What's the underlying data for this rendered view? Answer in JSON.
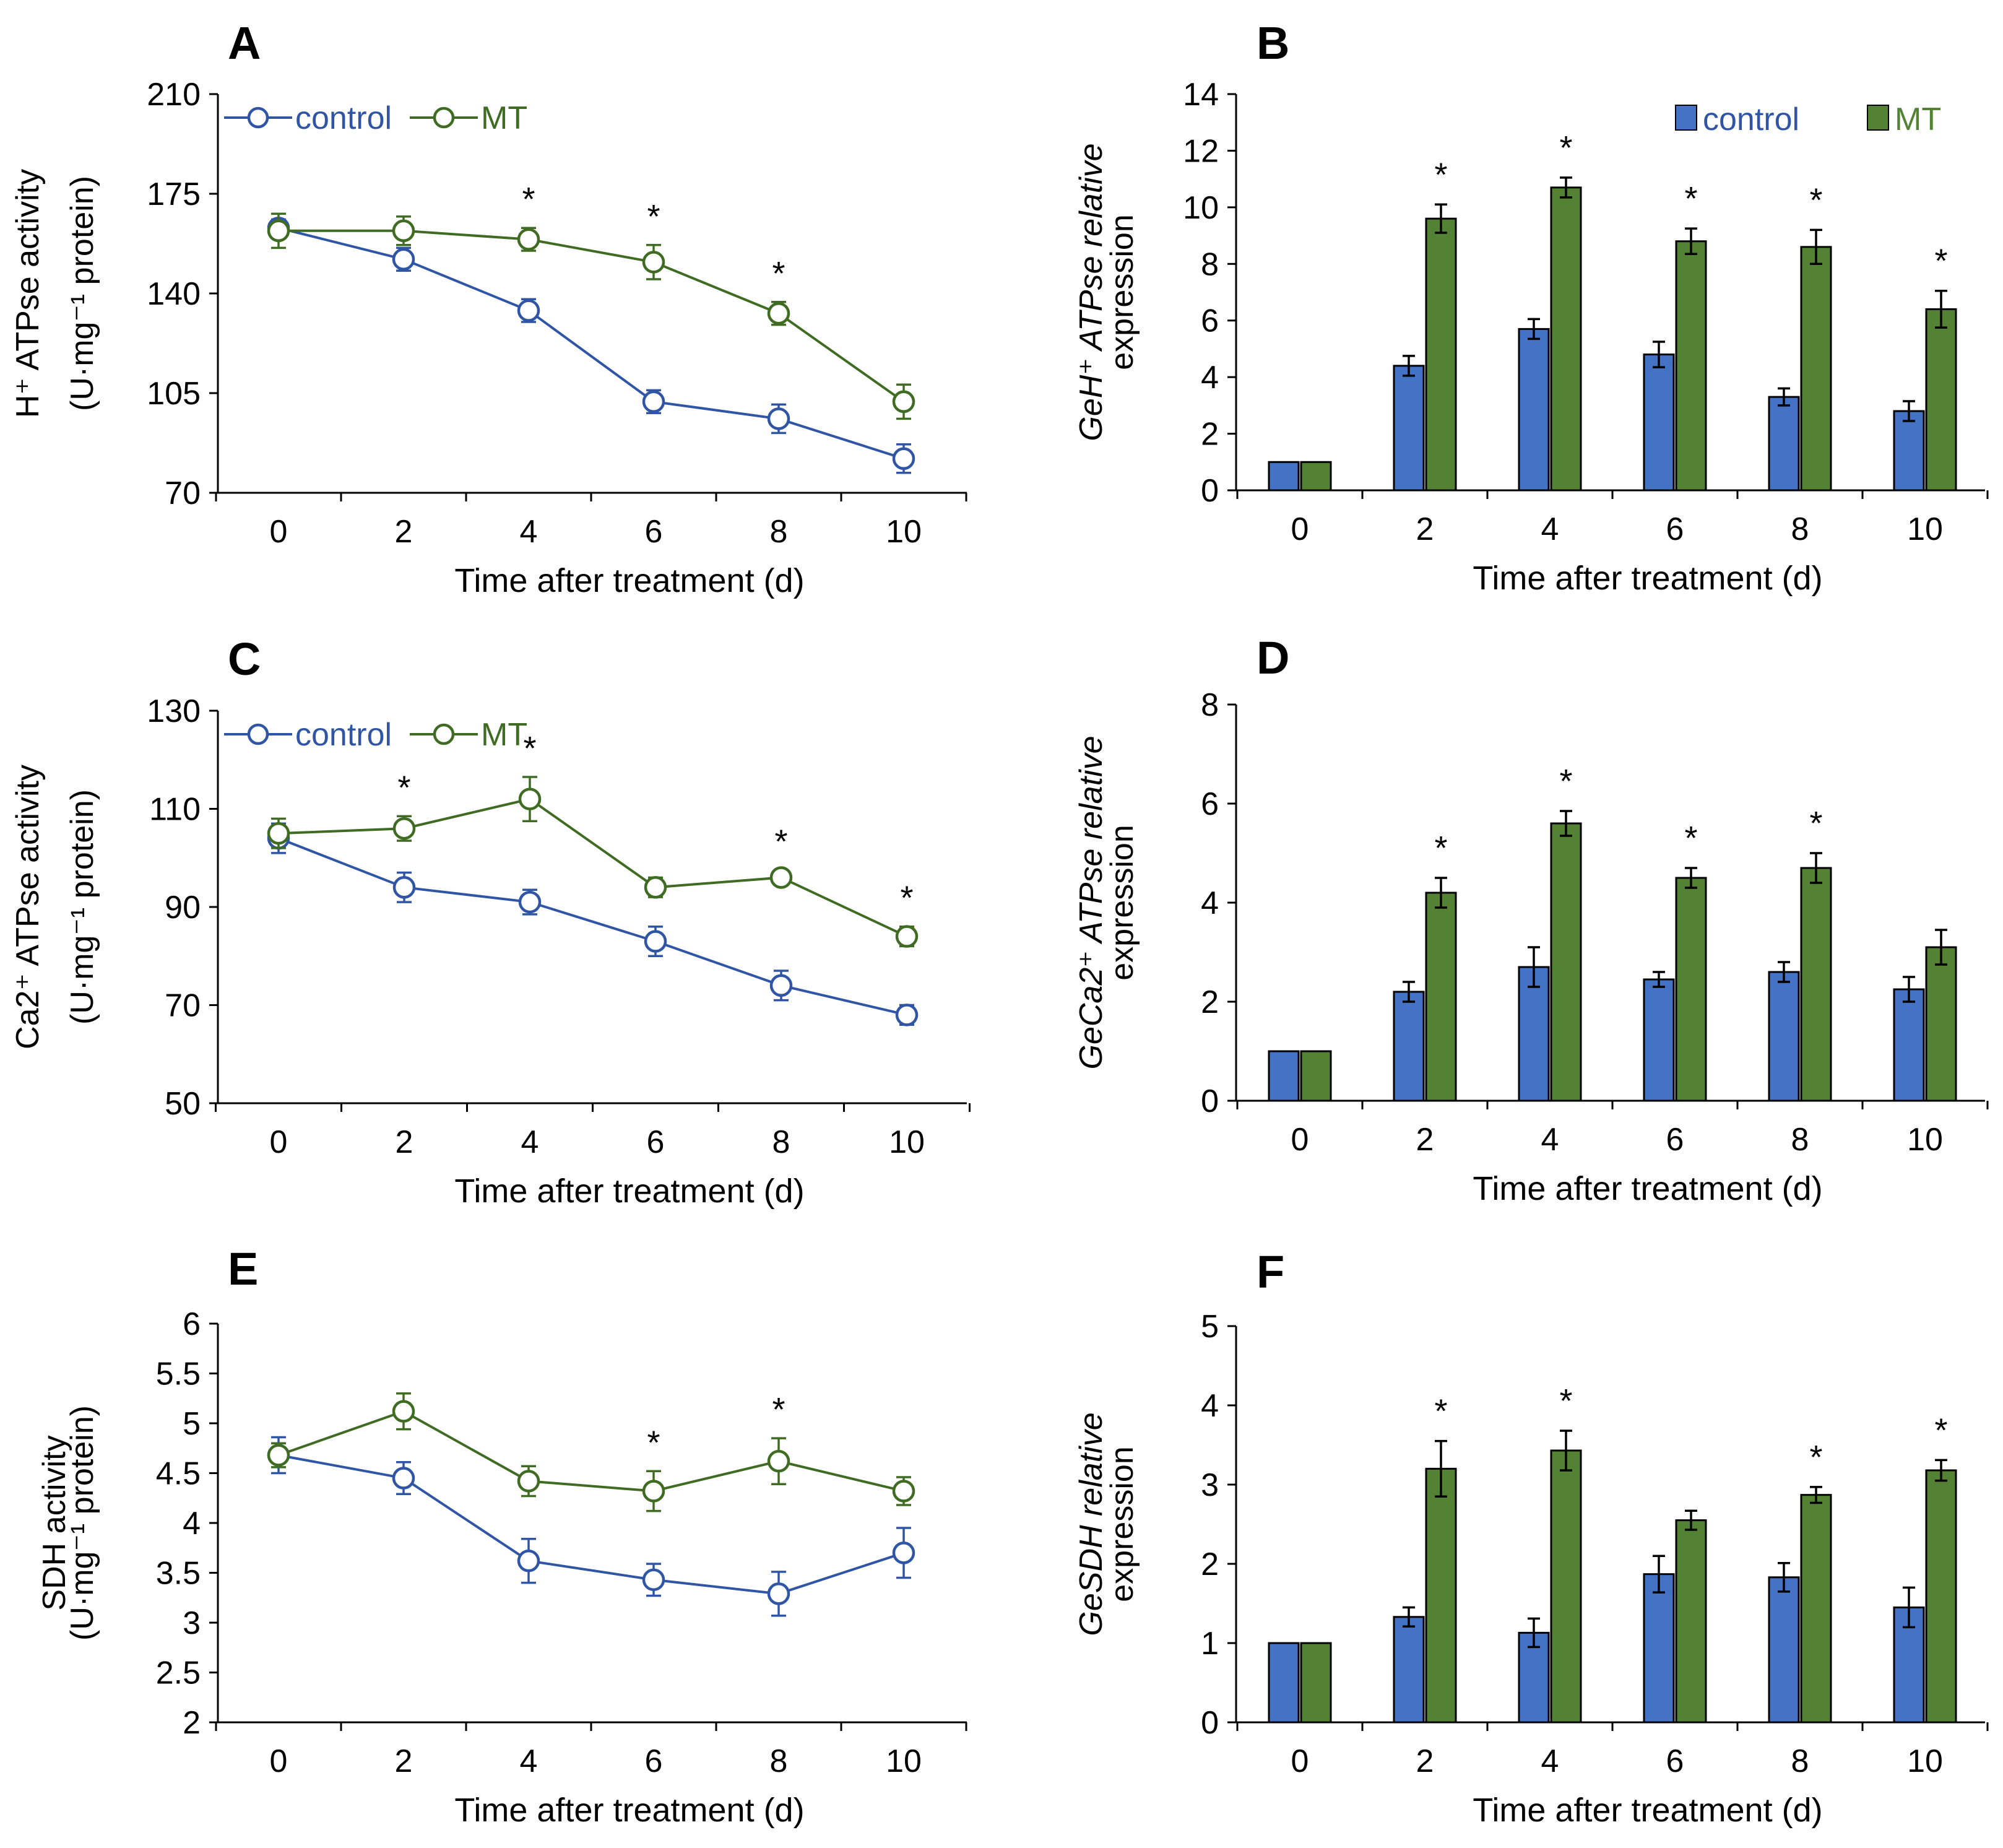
{
  "chart_data": [
    {
      "id": "A",
      "type": "line",
      "panel_label": "A",
      "ylabel_line1": "H⁺ ATPse activity",
      "ylabel_line2": "(U·mg⁻¹ protein)",
      "xlabel": "Time after treatment (d)",
      "x": [
        0,
        2,
        4,
        6,
        8,
        10
      ],
      "xticks": [
        "0",
        "2",
        "4",
        "6",
        "8",
        "10"
      ],
      "ylim": [
        70,
        210
      ],
      "yticks": [
        70,
        105,
        140,
        175,
        210
      ],
      "legend": [
        "control",
        "MT"
      ],
      "series": [
        {
          "name": "control",
          "values": [
            163,
            152,
            134,
            102,
            96,
            82
          ],
          "errors": [
            3,
            4,
            4,
            4,
            5,
            5
          ]
        },
        {
          "name": "MT",
          "values": [
            162,
            162,
            159,
            151,
            133,
            102
          ],
          "errors": [
            6,
            5,
            4,
            6,
            4,
            6
          ]
        }
      ],
      "significance": [
        "",
        "",
        "*",
        "*",
        "*",
        ""
      ]
    },
    {
      "id": "B",
      "type": "bar",
      "panel_label": "B",
      "ylabel_line1": "GeH⁺ ATPse relative",
      "ylabel_line2": "expression",
      "xlabel": "Time after treatment (d)",
      "categories": [
        "0",
        "2",
        "4",
        "6",
        "8",
        "10"
      ],
      "ylim": [
        0,
        14
      ],
      "yticks": [
        0,
        2,
        4,
        6,
        8,
        10,
        12,
        14
      ],
      "legend": [
        "control",
        "MT"
      ],
      "series": [
        {
          "name": "control",
          "values": [
            1.0,
            4.4,
            5.7,
            4.8,
            3.3,
            2.8
          ],
          "errors": [
            0,
            0.35,
            0.35,
            0.45,
            0.3,
            0.35
          ]
        },
        {
          "name": "MT",
          "values": [
            1.0,
            9.6,
            10.7,
            8.8,
            8.6,
            6.4
          ],
          "errors": [
            0,
            0.5,
            0.35,
            0.45,
            0.6,
            0.65
          ]
        }
      ],
      "significance": [
        "",
        "*",
        "*",
        "*",
        "*",
        "*"
      ]
    },
    {
      "id": "C",
      "type": "line",
      "panel_label": "C",
      "ylabel_line1": "Ca2⁺ ATPse activity",
      "ylabel_line2": "(U·mg⁻¹ protein)",
      "xlabel": "Time after treatment (d)",
      "x": [
        0,
        2,
        4,
        6,
        8,
        10
      ],
      "xticks": [
        "0",
        "2",
        "4",
        "6",
        "8",
        "10"
      ],
      "ylim": [
        50,
        130
      ],
      "yticks": [
        50,
        70,
        90,
        110,
        130
      ],
      "legend": [
        "control",
        "MT"
      ],
      "series": [
        {
          "name": "control",
          "values": [
            104,
            94,
            91,
            83,
            74,
            68
          ],
          "errors": [
            3,
            3,
            2.5,
            3,
            3,
            2
          ]
        },
        {
          "name": "MT",
          "values": [
            105,
            106,
            112,
            94,
            96,
            84
          ],
          "errors": [
            3,
            2.5,
            4.5,
            2,
            1.5,
            2
          ]
        }
      ],
      "significance": [
        "",
        "*",
        "*",
        "",
        "*",
        "*"
      ]
    },
    {
      "id": "D",
      "type": "bar",
      "panel_label": "D",
      "ylabel_line1": "GeCa2⁺ ATPse relative",
      "ylabel_line2": "expression",
      "xlabel": "Time after treatment (d)",
      "categories": [
        "0",
        "2",
        "4",
        "6",
        "8",
        "10"
      ],
      "ylim": [
        0,
        8
      ],
      "yticks": [
        0,
        2,
        4,
        6,
        8
      ],
      "series": [
        {
          "name": "control",
          "values": [
            1.0,
            2.2,
            2.7,
            2.45,
            2.6,
            2.25
          ],
          "errors": [
            0,
            0.2,
            0.4,
            0.15,
            0.2,
            0.25
          ]
        },
        {
          "name": "MT",
          "values": [
            1.0,
            4.2,
            5.6,
            4.5,
            4.7,
            3.1
          ],
          "errors": [
            0,
            0.3,
            0.25,
            0.2,
            0.3,
            0.35
          ]
        }
      ],
      "significance": [
        "",
        "*",
        "*",
        "*",
        "*",
        ""
      ]
    },
    {
      "id": "E",
      "type": "line",
      "panel_label": "E",
      "ylabel_line1": "SDH activity",
      "ylabel_line2": "(U·mg⁻¹ protein)",
      "xlabel": "Time after treatment (d)",
      "x": [
        0,
        2,
        4,
        6,
        8,
        10
      ],
      "xticks": [
        "0",
        "2",
        "4",
        "6",
        "8",
        "10"
      ],
      "ylim": [
        2,
        6
      ],
      "yticks": [
        2,
        2.5,
        3,
        3.5,
        4,
        4.5,
        5,
        5.5,
        6
      ],
      "series": [
        {
          "name": "control",
          "values": [
            4.68,
            4.45,
            3.62,
            3.43,
            3.29,
            3.7
          ],
          "errors": [
            0.18,
            0.16,
            0.22,
            0.16,
            0.22,
            0.25
          ]
        },
        {
          "name": "MT",
          "values": [
            4.68,
            5.12,
            4.42,
            4.32,
            4.62,
            4.32
          ],
          "errors": [
            0.12,
            0.18,
            0.15,
            0.2,
            0.23,
            0.14
          ]
        }
      ],
      "significance": [
        "",
        "",
        "",
        "*",
        "*",
        ""
      ]
    },
    {
      "id": "F",
      "type": "bar",
      "panel_label": "F",
      "ylabel_line1": "GeSDH relative",
      "ylabel_line2": "expression",
      "xlabel": "Time after treatment (d)",
      "categories": [
        "0",
        "2",
        "4",
        "6",
        "8",
        "10"
      ],
      "ylim": [
        0,
        5
      ],
      "yticks": [
        0,
        1,
        2,
        3,
        4,
        5
      ],
      "series": [
        {
          "name": "control",
          "values": [
            1.0,
            1.33,
            1.13,
            1.87,
            1.83,
            1.45
          ],
          "errors": [
            0,
            0.12,
            0.18,
            0.23,
            0.18,
            0.25
          ]
        },
        {
          "name": "MT",
          "values": [
            1.0,
            3.2,
            3.43,
            2.55,
            2.87,
            3.18
          ],
          "errors": [
            0,
            0.35,
            0.25,
            0.12,
            0.1,
            0.13
          ]
        }
      ],
      "significance": [
        "",
        "*",
        "*",
        "",
        "*",
        "*"
      ]
    }
  ],
  "colors": {
    "control_line": "#2f55a4",
    "mt_line": "#3f6b22",
    "control_bar": "#4472c4",
    "mt_bar": "#548235",
    "axis": "#000000"
  }
}
